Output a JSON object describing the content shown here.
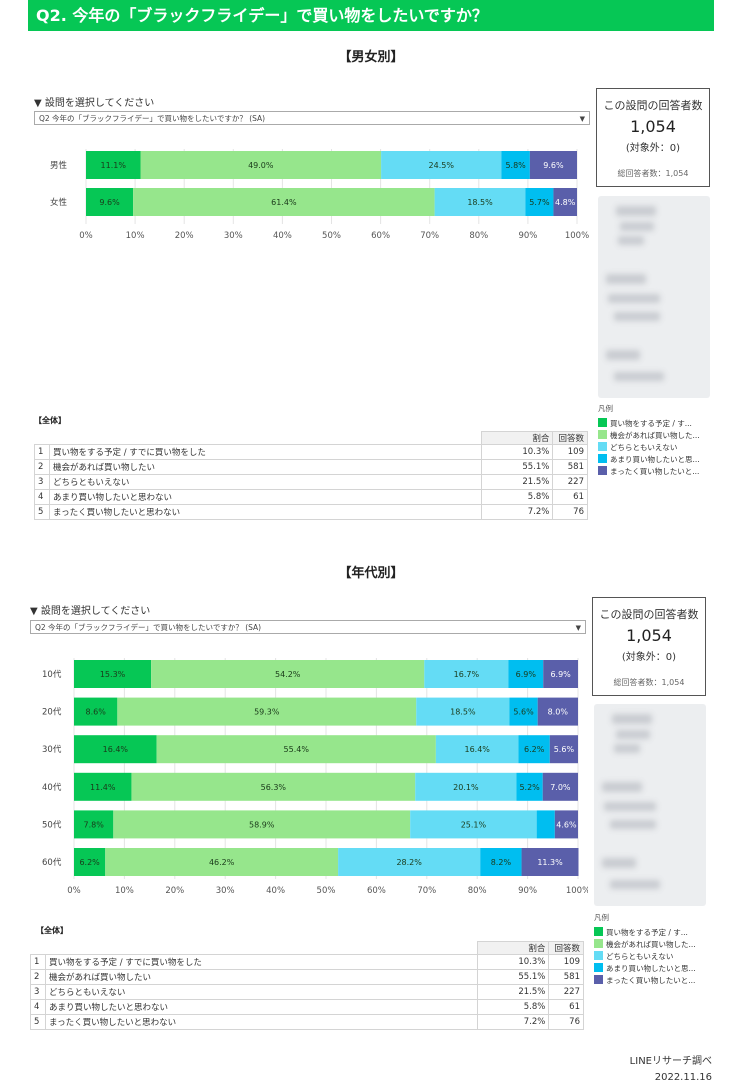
{
  "header": {
    "title": "Q2. 今年の「ブラックフライデー」で買い物をしたいですか？"
  },
  "gender_section": {
    "title": "【男女別】"
  },
  "age_section": {
    "title": "【年代別】"
  },
  "question_picker": {
    "label": "▼ 設問を選択してください",
    "value": "Q2 今年の「ブラックフライデー」で買い物をしたいですか？ (SA)",
    "dropdown_arrow": "▼"
  },
  "respondents": {
    "title": "この設問の回答者数",
    "count": "1,054",
    "excluded": "(対象外：0)",
    "total": "総回答者数：1,054"
  },
  "legend": {
    "title": "凡例",
    "items": [
      "買い物をする予定 / す...",
      "機会があれば買い物した...",
      "どちらともいえない",
      "あまり買い物したいと思...",
      "まったく買い物したいと..."
    ],
    "colors": [
      "#06c755",
      "#96e68c",
      "#64dcf5",
      "#00bef0",
      "#5a5faa"
    ]
  },
  "totals": {
    "label": "【全体】",
    "col_ratio": "割合",
    "col_count": "回答数",
    "rows": [
      {
        "no": "1",
        "label": "買い物をする予定 / すでに買い物をした",
        "ratio": "10.3%",
        "count": "109"
      },
      {
        "no": "2",
        "label": "機会があれば買い物したい",
        "ratio": "55.1%",
        "count": "581"
      },
      {
        "no": "3",
        "label": "どちらともいえない",
        "ratio": "21.5%",
        "count": "227"
      },
      {
        "no": "4",
        "label": "あまり買い物したいと思わない",
        "ratio": "5.8%",
        "count": "61"
      },
      {
        "no": "5",
        "label": "まったく買い物したいと思わない",
        "ratio": "7.2%",
        "count": "76"
      }
    ]
  },
  "footer": {
    "source": "LINEリサーチ調べ",
    "date": "2022.11.16"
  },
  "chart_data": [
    {
      "type": "bar",
      "orientation": "horizontal",
      "stacked": true,
      "title": "【男女別】",
      "categories": [
        "男性",
        "女性"
      ],
      "xlim": [
        0,
        100
      ],
      "x_ticks": [
        "0%",
        "10%",
        "20%",
        "30%",
        "40%",
        "50%",
        "60%",
        "70%",
        "80%",
        "90%",
        "100%"
      ],
      "grid": true,
      "series": [
        {
          "values": [
            11.1,
            9.6
          ],
          "labels": [
            "11.1%",
            "9.6%"
          ]
        },
        {
          "values": [
            49.0,
            61.4
          ],
          "labels": [
            "49.0%",
            "61.4%"
          ]
        },
        {
          "values": [
            24.5,
            18.5
          ],
          "labels": [
            "24.5%",
            "18.5%"
          ]
        },
        {
          "values": [
            5.8,
            5.7
          ],
          "labels": [
            "5.8%",
            "5.7%"
          ]
        },
        {
          "values": [
            9.6,
            4.8
          ],
          "labels": [
            "9.6%",
            "4.8%"
          ]
        }
      ]
    },
    {
      "type": "bar",
      "orientation": "horizontal",
      "stacked": true,
      "title": "【年代別】",
      "categories": [
        "10代",
        "20代",
        "30代",
        "40代",
        "50代",
        "60代"
      ],
      "xlim": [
        0,
        100
      ],
      "x_ticks": [
        "0%",
        "10%",
        "20%",
        "30%",
        "40%",
        "50%",
        "60%",
        "70%",
        "80%",
        "90%",
        "100%"
      ],
      "grid": true,
      "series": [
        {
          "values": [
            15.3,
            8.6,
            16.4,
            11.4,
            7.8,
            6.2
          ],
          "labels": [
            "15.3%",
            "8.6%",
            "16.4%",
            "11.4%",
            "7.8%",
            "6.2%"
          ]
        },
        {
          "values": [
            54.2,
            59.3,
            55.4,
            56.3,
            58.9,
            46.2
          ],
          "labels": [
            "54.2%",
            "59.3%",
            "55.4%",
            "56.3%",
            "58.9%",
            "46.2%"
          ]
        },
        {
          "values": [
            16.7,
            18.5,
            16.4,
            20.1,
            25.1,
            28.2
          ],
          "labels": [
            "16.7%",
            "18.5%",
            "16.4%",
            "20.1%",
            "25.1%",
            "28.2%"
          ]
        },
        {
          "values": [
            6.9,
            5.6,
            6.2,
            5.2,
            3.6,
            8.2
          ],
          "labels": [
            "6.9%",
            "5.6%",
            "6.2%",
            "5.2%",
            "",
            "8.2%"
          ]
        },
        {
          "values": [
            6.9,
            8.0,
            5.6,
            7.0,
            4.6,
            11.3
          ],
          "labels": [
            "6.9%",
            "8.0%",
            "5.6%",
            "7.0%",
            "4.6%",
            "11.3%"
          ]
        }
      ]
    }
  ]
}
